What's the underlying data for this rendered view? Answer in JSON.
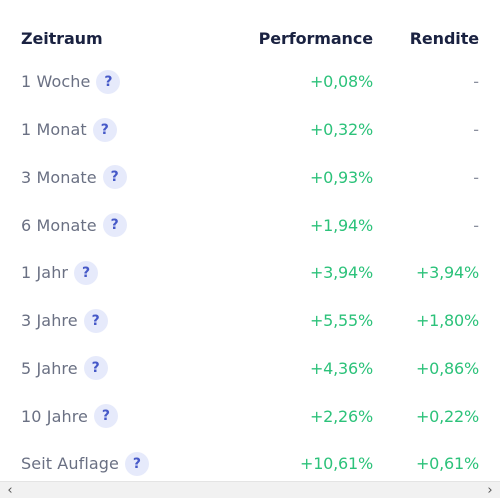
{
  "header": {
    "period": "Zeitraum",
    "performance": "Performance",
    "return": "Rendite"
  },
  "help_symbol": "?",
  "rows": [
    {
      "period": "1 Woche",
      "performance": "+0,08%",
      "return": "-"
    },
    {
      "period": "1 Monat",
      "performance": "+0,32%",
      "return": "-"
    },
    {
      "period": "3 Monate",
      "performance": "+0,93%",
      "return": "-"
    },
    {
      "period": "6 Monate",
      "performance": "+1,94%",
      "return": "-"
    },
    {
      "period": "1 Jahr",
      "performance": "+3,94%",
      "return": "+3,94%"
    },
    {
      "period": "3 Jahre",
      "performance": "+5,55%",
      "return": "+1,80%"
    },
    {
      "period": "5 Jahre",
      "performance": "+4,36%",
      "return": "+0,86%"
    },
    {
      "period": "10 Jahre",
      "performance": "+2,26%",
      "return": "+0,22%"
    },
    {
      "period": "Seit Auflage",
      "performance": "+10,61%",
      "return": "+0,61%"
    }
  ],
  "scrollbar": {
    "left_arrow": "‹",
    "right_arrow": "›"
  },
  "colors": {
    "positive": "#2cc27a",
    "header_text": "#1a2241",
    "label_text": "#6a7083",
    "help_bg": "#e6eafb",
    "help_fg": "#4659c8"
  }
}
